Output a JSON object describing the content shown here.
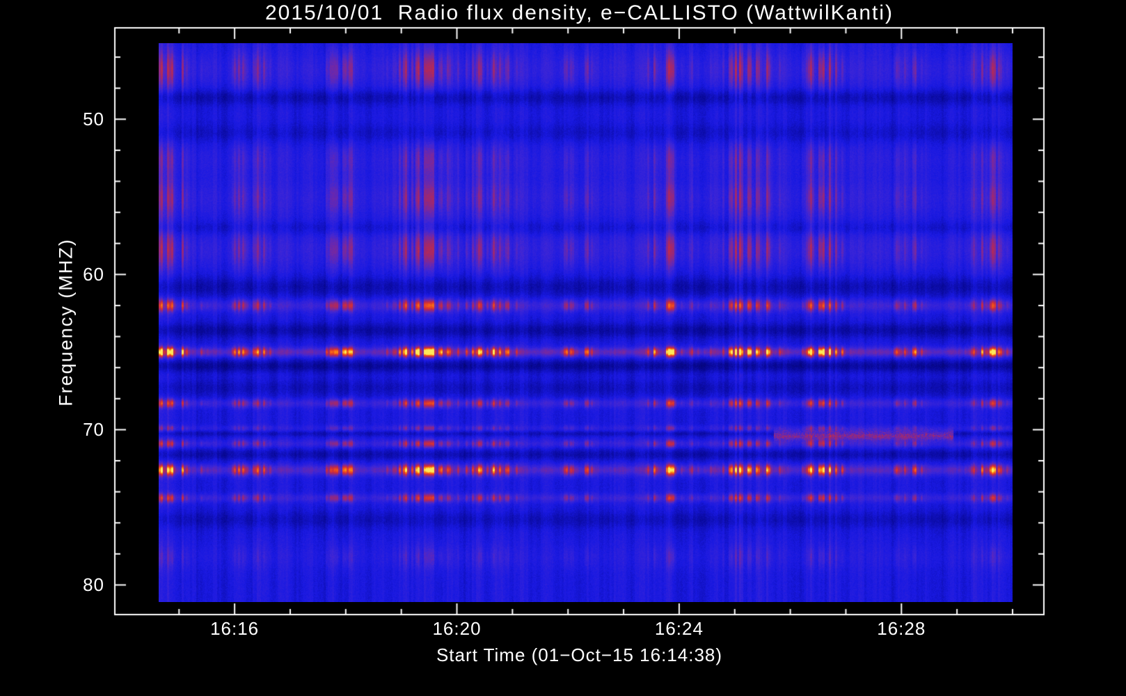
{
  "chart_data": {
    "type": "heatmap",
    "subtype": "radio-spectrogram",
    "title": "2015/10/01  Radio flux density, e−CALLISTO (WattwilKanti)",
    "xlabel": "Start Time (01−Oct−15 16:14:38)",
    "ylabel": "Frequency (MHZ)",
    "x_tick_labels": [
      "16:16",
      "16:20",
      "16:24",
      "16:28"
    ],
    "x_tick_minutes": [
      16,
      20,
      24,
      28
    ],
    "x_minor_tick_step_minutes": 1,
    "y_tick_labels": [
      "50",
      "60",
      "70",
      "80"
    ],
    "y_tick_freqs_mhz": [
      50,
      60,
      70,
      80
    ],
    "y_minor_tick_step_mhz": 2,
    "time_start": "16:14:38",
    "time_end_approx": "16:30:00",
    "freq_range_mhz": [
      45.1,
      81.1
    ],
    "freq_axis_inverted": true,
    "time_structure": "dense bursty vertical striping from broadband terrestrial interference",
    "background_level": 0.3,
    "background_color": "#000000",
    "axis_color": "#ffffff",
    "text_color": "#ffffff",
    "colormap_stops": [
      [
        0.0,
        [
          2,
          2,
          70
        ]
      ],
      [
        0.15,
        [
          8,
          8,
          150
        ]
      ],
      [
        0.3,
        [
          25,
          25,
          226
        ]
      ],
      [
        0.42,
        [
          62,
          38,
          214
        ]
      ],
      [
        0.52,
        [
          112,
          40,
          168
        ]
      ],
      [
        0.62,
        [
          162,
          40,
          108
        ]
      ],
      [
        0.72,
        [
          208,
          46,
          56
        ]
      ],
      [
        0.82,
        [
          242,
          82,
          26
        ]
      ],
      [
        0.92,
        [
          255,
          152,
          18
        ]
      ],
      [
        1.0,
        [
          255,
          232,
          90
        ]
      ]
    ],
    "emission_bands": [
      {
        "freq_mhz": 46.8,
        "sigma_mhz": 0.9,
        "amplitude": 0.34
      },
      {
        "freq_mhz": 52.6,
        "sigma_mhz": 0.8,
        "amplitude": 0.22
      },
      {
        "freq_mhz": 55.1,
        "sigma_mhz": 0.9,
        "amplitude": 0.3
      },
      {
        "freq_mhz": 58.4,
        "sigma_mhz": 0.9,
        "amplitude": 0.34
      },
      {
        "freq_mhz": 62.0,
        "sigma_mhz": 0.28,
        "amplitude": 0.55
      },
      {
        "freq_mhz": 65.0,
        "sigma_mhz": 0.22,
        "amplitude": 0.95
      },
      {
        "freq_mhz": 68.3,
        "sigma_mhz": 0.2,
        "amplitude": 0.5
      },
      {
        "freq_mhz": 69.9,
        "sigma_mhz": 0.14,
        "amplitude": 0.26
      },
      {
        "freq_mhz": 70.9,
        "sigma_mhz": 0.18,
        "amplitude": 0.42
      },
      {
        "freq_mhz": 72.6,
        "sigma_mhz": 0.25,
        "amplitude": 0.8
      },
      {
        "freq_mhz": 74.4,
        "sigma_mhz": 0.2,
        "amplitude": 0.46
      },
      {
        "freq_mhz": 78.2,
        "sigma_mhz": 0.55,
        "amplitude": 0.14
      }
    ],
    "absorption_bands": [
      {
        "freq_mhz": 48.6,
        "sigma_mhz": 0.35,
        "depth": 0.1
      },
      {
        "freq_mhz": 50.9,
        "sigma_mhz": 0.4,
        "depth": 0.06
      },
      {
        "freq_mhz": 57.0,
        "sigma_mhz": 0.3,
        "depth": 0.06
      },
      {
        "freq_mhz": 60.8,
        "sigma_mhz": 0.45,
        "depth": 0.1
      },
      {
        "freq_mhz": 63.6,
        "sigma_mhz": 0.35,
        "depth": 0.12
      },
      {
        "freq_mhz": 65.9,
        "sigma_mhz": 0.3,
        "depth": 0.14
      },
      {
        "freq_mhz": 67.3,
        "sigma_mhz": 0.4,
        "depth": 0.08
      },
      {
        "freq_mhz": 70.25,
        "sigma_mhz": 0.12,
        "depth": 0.08
      },
      {
        "freq_mhz": 71.6,
        "sigma_mhz": 0.25,
        "depth": 0.1
      },
      {
        "freq_mhz": 75.8,
        "sigma_mhz": 0.4,
        "depth": 0.08
      }
    ],
    "transient_features": [
      {
        "freq_mhz": 70.35,
        "sigma_mhz": 0.22,
        "amplitude": 0.38,
        "t_start_frac": 0.72,
        "t_end_frac": 0.93,
        "note": "continuous reddish drifting smear near 70.3 MHz around 16:26–16:28"
      }
    ]
  }
}
